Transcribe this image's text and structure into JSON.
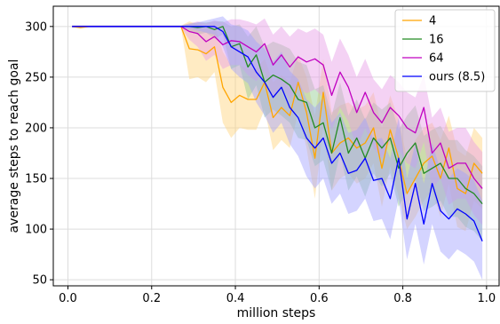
{
  "chart_data": {
    "type": "line",
    "xlabel": "million steps",
    "ylabel": "average steps to reach goal",
    "xlim": [
      -0.035,
      1.03
    ],
    "ylim": [
      44,
      320
    ],
    "xticks": [
      0.0,
      0.2,
      0.4,
      0.6,
      0.8,
      1.0
    ],
    "xtick_labels": [
      "0.0",
      "0.2",
      "0.4",
      "0.6",
      "0.8",
      "1.0"
    ],
    "yticks": [
      50,
      100,
      150,
      200,
      250,
      300
    ],
    "ytick_labels": [
      "50",
      "100",
      "150",
      "200",
      "250",
      "300"
    ],
    "grid": true,
    "legend_position": "top-right",
    "x": [
      0.01,
      0.03,
      0.05,
      0.07,
      0.09,
      0.11,
      0.13,
      0.15,
      0.17,
      0.19,
      0.21,
      0.23,
      0.25,
      0.27,
      0.29,
      0.31,
      0.33,
      0.35,
      0.37,
      0.39,
      0.41,
      0.43,
      0.45,
      0.47,
      0.49,
      0.51,
      0.53,
      0.55,
      0.57,
      0.59,
      0.61,
      0.63,
      0.65,
      0.67,
      0.69,
      0.71,
      0.73,
      0.75,
      0.77,
      0.79,
      0.81,
      0.83,
      0.85,
      0.87,
      0.89,
      0.91,
      0.93,
      0.95,
      0.97,
      0.99
    ],
    "series": [
      {
        "name": "4",
        "color": "#ffa500",
        "fill": "#ffd27a",
        "values": [
          300,
          299,
          300,
          300,
          300,
          300,
          300,
          300,
          300,
          300,
          300,
          300,
          300,
          300,
          278,
          277,
          273,
          280,
          240,
          225,
          232,
          228,
          228,
          245,
          210,
          220,
          212,
          245,
          215,
          170,
          235,
          175,
          185,
          190,
          180,
          185,
          200,
          160,
          198,
          170,
          135,
          150,
          165,
          172,
          150,
          180,
          140,
          135,
          165,
          155
        ],
        "upper": [
          301,
          301,
          301,
          301,
          301,
          301,
          301,
          301,
          301,
          301,
          301,
          301,
          301,
          301,
          305,
          302,
          300,
          302,
          275,
          262,
          262,
          258,
          258,
          268,
          245,
          252,
          245,
          272,
          250,
          212,
          268,
          215,
          222,
          225,
          218,
          222,
          235,
          200,
          232,
          208,
          170,
          188,
          200,
          205,
          188,
          212,
          178,
          172,
          200,
          190
        ],
        "lower": [
          299,
          298,
          299,
          299,
          299,
          299,
          299,
          299,
          299,
          299,
          299,
          299,
          299,
          299,
          248,
          250,
          245,
          255,
          205,
          190,
          200,
          198,
          198,
          218,
          178,
          188,
          180,
          215,
          180,
          130,
          200,
          138,
          150,
          155,
          145,
          150,
          165,
          122,
          162,
          132,
          100,
          112,
          128,
          138,
          112,
          145,
          102,
          98,
          128,
          120
        ]
      },
      {
        "name": "16",
        "color": "#228b22",
        "fill": "#8fc98f",
        "values": [
          300,
          300,
          300,
          300,
          300,
          300,
          300,
          300,
          300,
          300,
          300,
          300,
          300,
          300,
          300,
          299,
          300,
          297,
          300,
          280,
          283,
          260,
          272,
          245,
          252,
          248,
          242,
          228,
          225,
          200,
          205,
          175,
          210,
          175,
          190,
          170,
          190,
          180,
          190,
          160,
          175,
          185,
          155,
          160,
          165,
          150,
          150,
          140,
          135,
          125
        ],
        "upper": [
          301,
          301,
          301,
          301,
          301,
          301,
          301,
          301,
          301,
          301,
          301,
          301,
          301,
          301,
          303,
          304,
          304,
          305,
          305,
          300,
          302,
          290,
          300,
          280,
          285,
          282,
          278,
          265,
          262,
          238,
          242,
          212,
          245,
          212,
          228,
          208,
          225,
          218,
          225,
          198,
          212,
          222,
          192,
          198,
          202,
          188,
          188,
          178,
          172,
          162
        ],
        "lower": [
          299,
          299,
          299,
          299,
          299,
          299,
          299,
          299,
          299,
          299,
          299,
          299,
          299,
          299,
          296,
          292,
          294,
          288,
          292,
          258,
          262,
          228,
          242,
          210,
          218,
          212,
          205,
          190,
          188,
          162,
          168,
          138,
          175,
          138,
          152,
          132,
          155,
          142,
          155,
          122,
          138,
          148,
          118,
          122,
          128,
          112,
          112,
          102,
          98,
          88
        ]
      },
      {
        "name": "64",
        "color": "#c000c0",
        "fill": "#e79be7",
        "values": [
          300,
          300,
          300,
          300,
          300,
          300,
          300,
          300,
          300,
          300,
          300,
          300,
          300,
          300,
          295,
          293,
          285,
          290,
          282,
          286,
          285,
          280,
          275,
          283,
          262,
          272,
          260,
          270,
          265,
          268,
          262,
          232,
          255,
          240,
          215,
          235,
          215,
          205,
          220,
          212,
          200,
          195,
          220,
          175,
          185,
          160,
          165,
          165,
          150,
          140
        ],
        "upper": [
          301,
          301,
          301,
          301,
          301,
          301,
          301,
          301,
          301,
          301,
          301,
          301,
          301,
          301,
          303,
          305,
          303,
          306,
          304,
          307,
          307,
          305,
          302,
          308,
          292,
          300,
          290,
          298,
          294,
          298,
          292,
          265,
          288,
          272,
          250,
          268,
          248,
          238,
          252,
          245,
          235,
          230,
          252,
          210,
          220,
          196,
          200,
          200,
          186,
          176
        ],
        "lower": [
          299,
          299,
          299,
          299,
          299,
          299,
          299,
          299,
          299,
          299,
          299,
          299,
          299,
          299,
          287,
          280,
          266,
          272,
          258,
          262,
          262,
          252,
          246,
          256,
          230,
          242,
          228,
          240,
          234,
          238,
          230,
          198,
          220,
          206,
          180,
          200,
          180,
          170,
          186,
          178,
          165,
          160,
          186,
          140,
          150,
          124,
          130,
          130,
          114,
          104
        ]
      },
      {
        "name": "ours (8.5)",
        "color": "#0000ff",
        "fill": "#9f9fff",
        "values": [
          300,
          300,
          300,
          300,
          300,
          300,
          300,
          300,
          300,
          300,
          300,
          300,
          300,
          300,
          300,
          300,
          300,
          300,
          295,
          280,
          275,
          270,
          255,
          245,
          230,
          240,
          220,
          210,
          190,
          180,
          190,
          165,
          175,
          155,
          158,
          170,
          148,
          150,
          130,
          170,
          110,
          145,
          105,
          145,
          118,
          110,
          120,
          115,
          108,
          88
        ],
        "upper": [
          301,
          301,
          301,
          301,
          301,
          301,
          301,
          301,
          301,
          301,
          301,
          301,
          301,
          301,
          302,
          304,
          306,
          308,
          310,
          302,
          300,
          296,
          285,
          278,
          265,
          275,
          256,
          248,
          228,
          220,
          230,
          205,
          215,
          195,
          198,
          210,
          188,
          190,
          170,
          210,
          150,
          185,
          145,
          185,
          158,
          150,
          160,
          155,
          148,
          128
        ],
        "lower": [
          299,
          299,
          299,
          299,
          299,
          299,
          299,
          299,
          299,
          299,
          299,
          299,
          299,
          299,
          298,
          296,
          294,
          292,
          280,
          258,
          250,
          244,
          225,
          212,
          195,
          205,
          184,
          172,
          152,
          140,
          150,
          125,
          135,
          115,
          118,
          130,
          108,
          110,
          90,
          130,
          70,
          105,
          65,
          105,
          78,
          70,
          80,
          75,
          68,
          50
        ]
      }
    ]
  }
}
